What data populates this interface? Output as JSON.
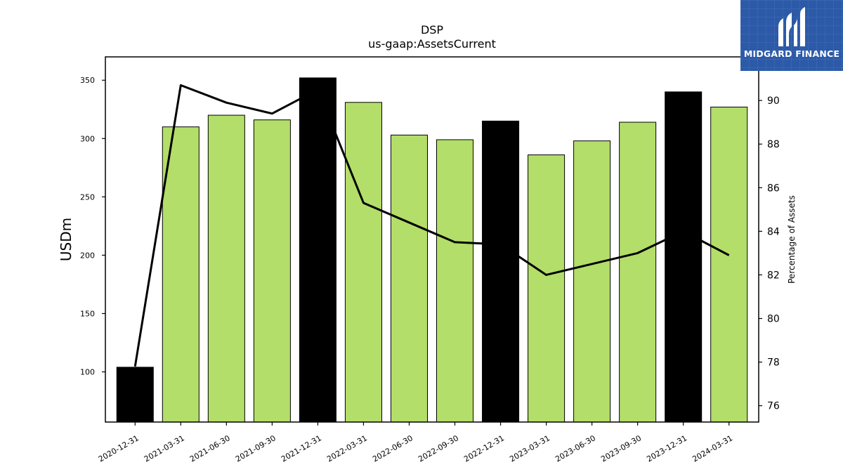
{
  "chart_data": {
    "type": "bar",
    "title": "DSP",
    "subtitle": "us-gaap:AssetsCurrent",
    "ylabel": "USDm",
    "y2label": "Percentage of Assets",
    "categories": [
      "2020-12-31",
      "2021-03-31",
      "2021-06-30",
      "2021-09-30",
      "2021-12-31",
      "2022-03-31",
      "2022-06-30",
      "2022-09-30",
      "2022-12-31",
      "2023-03-31",
      "2023-06-30",
      "2023-09-30",
      "2023-12-31",
      "2024-03-31"
    ],
    "series": [
      {
        "type": "bar",
        "axis": "left",
        "values": [
          104,
          310,
          320,
          316,
          352,
          331,
          303,
          299,
          315,
          286,
          298,
          314,
          340,
          327
        ],
        "colors": [
          "#000000",
          "#b3de69",
          "#b3de69",
          "#b3de69",
          "#000000",
          "#b3de69",
          "#b3de69",
          "#b3de69",
          "#000000",
          "#b3de69",
          "#b3de69",
          "#b3de69",
          "#000000",
          "#b3de69"
        ]
      },
      {
        "type": "line",
        "axis": "right",
        "color": "#000000",
        "values": [
          77.8,
          90.7,
          89.9,
          89.4,
          90.5,
          85.3,
          84.4,
          83.5,
          83.4,
          82.0,
          82.5,
          83.0,
          84.0,
          82.9
        ]
      }
    ],
    "ylim": [
      57,
      370
    ],
    "y2lim": [
      75.25,
      92.0
    ],
    "yticks": [
      100,
      150,
      200,
      250,
      300,
      350
    ],
    "y2ticks": [
      76,
      78,
      80,
      82,
      84,
      86,
      88,
      90
    ],
    "grid": false,
    "legend": "none"
  },
  "logo": {
    "text": "MIDGARD FINANCE",
    "background": "#2c5aa8"
  }
}
